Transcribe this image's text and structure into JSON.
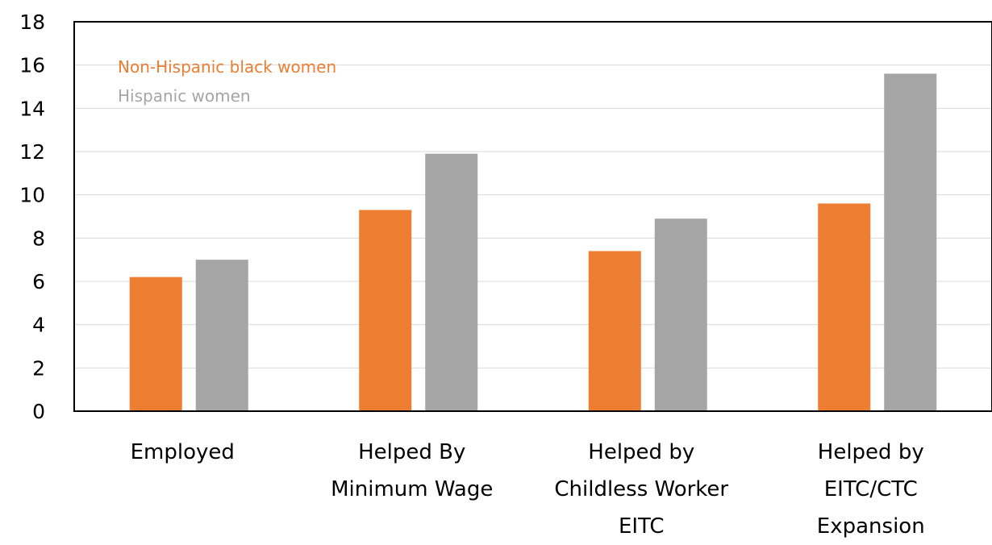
{
  "chart_data": {
    "type": "bar",
    "categories": [
      [
        "Employed"
      ],
      [
        "Helped By",
        "Minimum Wage"
      ],
      [
        "Helped by",
        "Childless Worker",
        "EITC"
      ],
      [
        "Helped by",
        "EITC/CTC",
        "Expansion"
      ]
    ],
    "series": [
      {
        "name": "Non-Hispanic black women",
        "color": "#ED7D31",
        "values": [
          6.2,
          9.3,
          7.4,
          9.6
        ]
      },
      {
        "name": "Hispanic women",
        "color": "#A5A5A5",
        "values": [
          7.0,
          11.9,
          8.9,
          15.6
        ]
      }
    ],
    "ylim": [
      0,
      18
    ],
    "yticks": [
      "0",
      "2",
      "4",
      "6",
      "8",
      "10",
      "12",
      "14",
      "16",
      "18"
    ],
    "grid": true,
    "legend_position": "top-left",
    "title": "",
    "xlabel": "",
    "ylabel": ""
  }
}
